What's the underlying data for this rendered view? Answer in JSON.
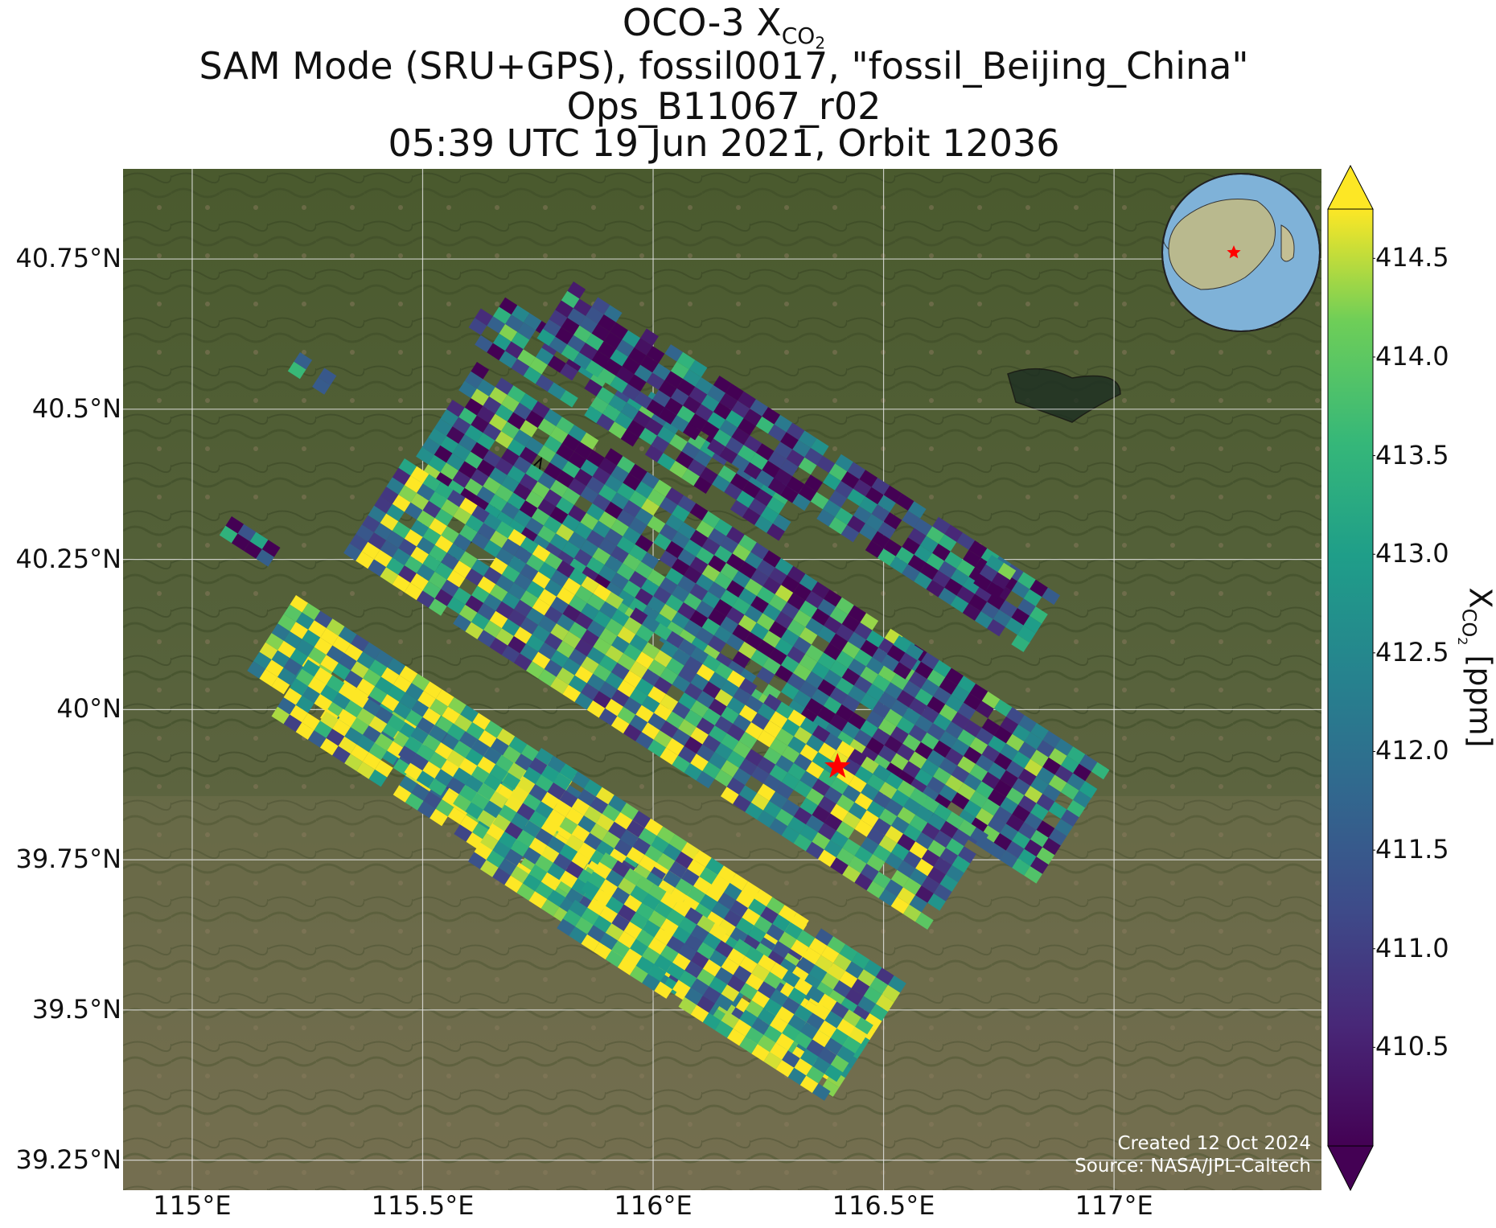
{
  "title": {
    "line1_prefix": "OCO-3 X",
    "line1_sub": "CO",
    "line1_subsub": "2",
    "line2": "SAM Mode (SRU+GPS), fossil0017, \"fossil_Beijing_China\"",
    "line3": "Ops_B11067_r02",
    "line4": "05:39 UTC 19 Jun 2021, Orbit 12036"
  },
  "axes": {
    "lon_range": [
      114.85,
      117.45
    ],
    "lat_range": [
      39.2,
      40.9
    ],
    "lon_ticks": [
      {
        "value": 115.0,
        "label": "115°E"
      },
      {
        "value": 115.5,
        "label": "115.5°E"
      },
      {
        "value": 116.0,
        "label": "116°E"
      },
      {
        "value": 116.5,
        "label": "116.5°E"
      },
      {
        "value": 117.0,
        "label": "117°E"
      }
    ],
    "lat_ticks": [
      {
        "value": 40.75,
        "label": "40.75°N"
      },
      {
        "value": 40.5,
        "label": "40.5°N"
      },
      {
        "value": 40.25,
        "label": "40.25°N"
      },
      {
        "value": 40.0,
        "label": "40°N"
      },
      {
        "value": 39.75,
        "label": "39.75°N"
      },
      {
        "value": 39.5,
        "label": "39.5°N"
      },
      {
        "value": 39.25,
        "label": "39.25°N"
      }
    ],
    "grid": true
  },
  "colorbar": {
    "label_prefix": "X",
    "label_sub": "CO",
    "label_subsub": "2",
    "label_suffix": " [ppm]",
    "range": [
      410.0,
      414.75
    ],
    "extend": "both",
    "colormap": "viridis",
    "ticks": [
      {
        "value": 414.5,
        "label": "414.5"
      },
      {
        "value": 414.0,
        "label": "414.0"
      },
      {
        "value": 413.5,
        "label": "413.5"
      },
      {
        "value": 413.0,
        "label": "413.0"
      },
      {
        "value": 412.5,
        "label": "412.5"
      },
      {
        "value": 412.0,
        "label": "412.0"
      },
      {
        "value": 411.5,
        "label": "411.5"
      },
      {
        "value": 411.0,
        "label": "411.0"
      },
      {
        "value": 410.5,
        "label": "410.5"
      }
    ]
  },
  "target": {
    "lon": 116.4,
    "lat": 39.905,
    "marker": "red-star"
  },
  "inset_globe": {
    "marker": "red-star"
  },
  "credit": {
    "line1": "Created 12 Oct 2024",
    "line2": "Source: NASA/JPL-Caltech"
  }
}
